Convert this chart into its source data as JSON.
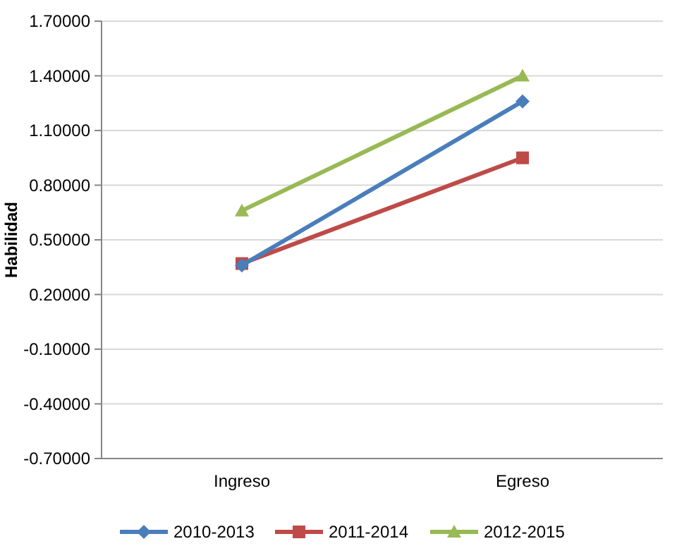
{
  "chart_data": {
    "type": "line",
    "ylabel": "Habilidad",
    "categories": [
      "Ingreso",
      "Egreso"
    ],
    "series": [
      {
        "name": "2010-2013",
        "color": "#4a7ebb",
        "values": [
          0.36,
          1.26
        ],
        "marker": "diamond"
      },
      {
        "name": "2011-2014",
        "color": "#be4b48",
        "values": [
          0.37,
          0.95
        ],
        "marker": "square"
      },
      {
        "name": "2012-2015",
        "color": "#98b954",
        "values": [
          0.66,
          1.4
        ],
        "marker": "triangle"
      }
    ],
    "ylim": [
      -0.7,
      1.7
    ],
    "yticks": [
      {
        "value": -0.7,
        "label": "-0.70000"
      },
      {
        "value": -0.4,
        "label": "-0.40000"
      },
      {
        "value": -0.1,
        "label": "-0.10000"
      },
      {
        "value": 0.2,
        "label": "0.20000"
      },
      {
        "value": 0.5,
        "label": "0.50000"
      },
      {
        "value": 0.8,
        "label": "0.80000"
      },
      {
        "value": 1.1,
        "label": "1.10000"
      },
      {
        "value": 1.4,
        "label": "1.40000"
      },
      {
        "value": 1.7,
        "label": "1.70000"
      }
    ],
    "grid": "y",
    "legend": "bottom",
    "line_style": "solid"
  }
}
